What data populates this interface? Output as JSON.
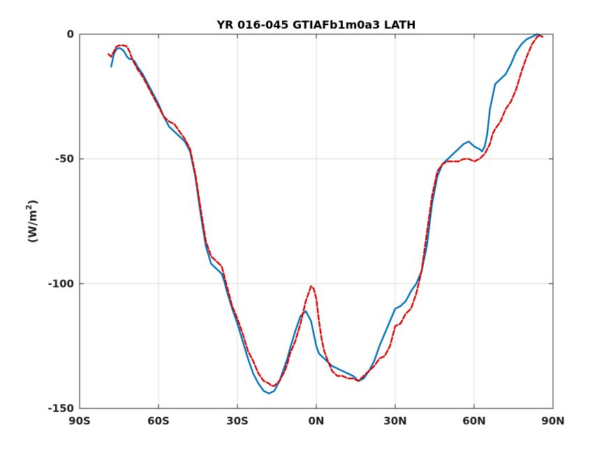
{
  "chart_data": {
    "type": "line",
    "title": "YR 016-045 GTIAFb1m0a3 LATH",
    "ylabel_prefix": "(W/m",
    "ylabel_sup": "2",
    "ylabel_suffix": ")",
    "xlim": [
      -90,
      90
    ],
    "ylim": [
      -150,
      0
    ],
    "xticks": [
      {
        "value": -90,
        "label": "90S"
      },
      {
        "value": -60,
        "label": "60S"
      },
      {
        "value": -30,
        "label": "30S"
      },
      {
        "value": 0,
        "label": "0N"
      },
      {
        "value": 30,
        "label": "30N"
      },
      {
        "value": 60,
        "label": "60N"
      },
      {
        "value": 90,
        "label": "90N"
      }
    ],
    "yticks": [
      {
        "value": 0,
        "label": "0"
      },
      {
        "value": -50,
        "label": "-50"
      },
      {
        "value": -100,
        "label": "-100"
      },
      {
        "value": -150,
        "label": "-150"
      }
    ],
    "grid": true,
    "series": [
      {
        "color": "#0072BD",
        "style": "solid",
        "x": [
          -78,
          -77,
          -76,
          -75,
          -74,
          -73,
          -72,
          -71,
          -70,
          -69,
          -68,
          -66,
          -64,
          -62,
          -60,
          -58,
          -56,
          -54,
          -52,
          -50,
          -48,
          -46,
          -44,
          -42,
          -40,
          -38,
          -36,
          -35,
          -34,
          -32,
          -30,
          -28,
          -26,
          -24,
          -22,
          -20,
          -18,
          -16,
          -15,
          -14,
          -13,
          -12,
          -11,
          -10,
          -8,
          -6,
          -4,
          -2,
          -1,
          0,
          1,
          2,
          3,
          4,
          6,
          8,
          10,
          12,
          14,
          15,
          16,
          18,
          20,
          22,
          24,
          26,
          28,
          30,
          32,
          34,
          36,
          38,
          40,
          42,
          44,
          46,
          48,
          50,
          52,
          54,
          56,
          58,
          60,
          62,
          63,
          64,
          65,
          66,
          67,
          68,
          70,
          72,
          74,
          76,
          78,
          80,
          82,
          84,
          85,
          86
        ],
        "y": [
          -13,
          -8,
          -6,
          -5.5,
          -6,
          -7,
          -9,
          -10,
          -10,
          -11,
          -13,
          -16,
          -20,
          -24,
          -28,
          -33,
          -37,
          -39,
          -41,
          -43,
          -47,
          -57,
          -72,
          -85,
          -92,
          -94,
          -96,
          -99,
          -103,
          -110,
          -116,
          -123,
          -130,
          -136,
          -140,
          -143,
          -144,
          -143,
          -141,
          -139,
          -136,
          -133,
          -130,
          -126,
          -119,
          -113,
          -111,
          -115,
          -120,
          -125,
          -128,
          -129,
          -130,
          -131,
          -133,
          -134,
          -135,
          -136,
          -137,
          -138,
          -139,
          -138,
          -135,
          -131,
          -125,
          -120,
          -115,
          -110,
          -109,
          -107,
          -103,
          -100,
          -95,
          -85,
          -68,
          -57,
          -52,
          -50,
          -48,
          -46,
          -44,
          -43,
          -45,
          -46,
          -47,
          -45,
          -40,
          -30,
          -25,
          -20,
          -18,
          -16,
          -12,
          -7,
          -4,
          -2,
          -1,
          0,
          -0.5,
          -1
        ]
      },
      {
        "color": "#E00000",
        "style": "dashed",
        "x": [
          -79,
          -78,
          -77,
          -76,
          -75,
          -74,
          -73,
          -72,
          -71,
          -70,
          -68,
          -66,
          -64,
          -62,
          -60,
          -58,
          -56,
          -54,
          -52,
          -50,
          -48,
          -46,
          -44,
          -42,
          -40,
          -38,
          -36,
          -35,
          -34,
          -32,
          -30,
          -28,
          -26,
          -24,
          -22,
          -20,
          -18,
          -17,
          -16,
          -15,
          -14,
          -13,
          -12,
          -11,
          -10,
          -8,
          -6,
          -4,
          -2,
          -1,
          0,
          1,
          2,
          3,
          4,
          6,
          8,
          10,
          12,
          14,
          16,
          18,
          20,
          22,
          24,
          26,
          28,
          30,
          32,
          34,
          36,
          38,
          40,
          42,
          44,
          46,
          48,
          50,
          52,
          54,
          56,
          58,
          60,
          62,
          64,
          65,
          66,
          67,
          68,
          70,
          72,
          74,
          76,
          78,
          80,
          82,
          84,
          85,
          86
        ],
        "y": [
          -8,
          -9,
          -7,
          -5,
          -4.5,
          -4.5,
          -4.5,
          -5,
          -7,
          -10,
          -14,
          -17,
          -21,
          -25,
          -29,
          -33,
          -35,
          -36,
          -39,
          -42,
          -46,
          -56,
          -70,
          -83,
          -89,
          -91,
          -93,
          -97,
          -101,
          -109,
          -114,
          -120,
          -127,
          -131,
          -136,
          -139,
          -140,
          -141,
          -141,
          -140,
          -139,
          -137,
          -135,
          -132,
          -128,
          -123,
          -116,
          -107,
          -101,
          -102,
          -106,
          -115,
          -122,
          -127,
          -130,
          -135,
          -137,
          -137,
          -138,
          -138,
          -139,
          -137,
          -135,
          -133,
          -130,
          -129,
          -125,
          -117,
          -116,
          -112,
          -110,
          -104,
          -95,
          -80,
          -65,
          -55,
          -52,
          -51,
          -51,
          -51,
          -50,
          -50,
          -51,
          -50,
          -48,
          -46,
          -44,
          -40,
          -38,
          -35,
          -30,
          -27,
          -22,
          -15,
          -9,
          -4,
          -1,
          -0.5,
          -1
        ]
      }
    ]
  }
}
